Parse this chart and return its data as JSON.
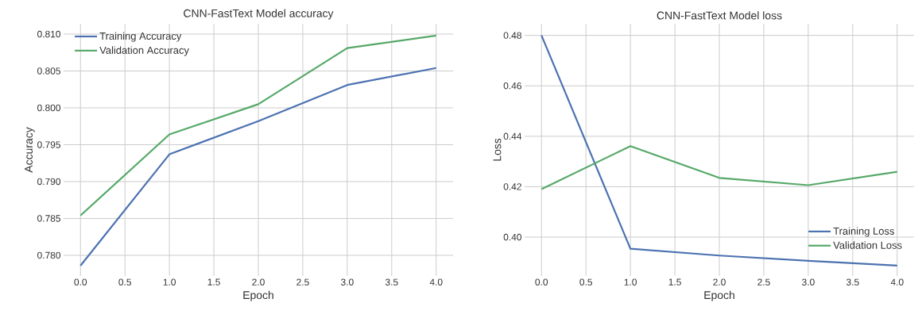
{
  "chart_data": [
    {
      "type": "line",
      "title": "CNN-FastText Model accuracy",
      "xlabel": "Epoch",
      "ylabel": "Accuracy",
      "x": [
        0,
        1,
        2,
        3,
        4
      ],
      "series": [
        {
          "name": "Training Accuracy",
          "color": "#4c72b0",
          "values": [
            0.7786,
            0.7937,
            0.7982,
            0.8031,
            0.8054
          ]
        },
        {
          "name": "Validation Accuracy",
          "color": "#55a868",
          "values": [
            0.7854,
            0.7964,
            0.8005,
            0.8081,
            0.8098
          ]
        }
      ],
      "xlim": [
        -0.19,
        4.19
      ],
      "ylim": [
        0.7772,
        0.8114
      ],
      "xticks": [
        {
          "value": 0,
          "label": "0.0"
        },
        {
          "value": 0.5,
          "label": "0.5"
        },
        {
          "value": 1,
          "label": "1.0"
        },
        {
          "value": 1.5,
          "label": "1.5"
        },
        {
          "value": 2,
          "label": "2.0"
        },
        {
          "value": 2.5,
          "label": "2.5"
        },
        {
          "value": 3,
          "label": "3.0"
        },
        {
          "value": 3.5,
          "label": "3.5"
        },
        {
          "value": 4,
          "label": "4.0"
        }
      ],
      "yticks": [
        {
          "value": 0.78,
          "label": "0.780"
        },
        {
          "value": 0.785,
          "label": "0.785"
        },
        {
          "value": 0.79,
          "label": "0.790"
        },
        {
          "value": 0.795,
          "label": "0.795"
        },
        {
          "value": 0.8,
          "label": "0.800"
        },
        {
          "value": 0.805,
          "label": "0.805"
        },
        {
          "value": 0.81,
          "label": "0.810"
        }
      ],
      "grid": true,
      "legend": "top left"
    },
    {
      "type": "line",
      "title": "CNN-FastText Model loss",
      "xlabel": "Epoch",
      "ylabel": "Loss",
      "x": [
        0,
        1,
        2,
        3,
        4
      ],
      "series": [
        {
          "name": "Training Loss",
          "color": "#4c72b0",
          "values": [
            0.48,
            0.3954,
            0.3927,
            0.3906,
            0.3887
          ]
        },
        {
          "name": "Validation Loss",
          "color": "#55a868",
          "values": [
            0.419,
            0.4361,
            0.4235,
            0.4206,
            0.4259
          ]
        }
      ],
      "xlim": [
        -0.19,
        4.19
      ],
      "ylim": [
        0.3846,
        0.4846
      ],
      "xticks": [
        {
          "value": 0,
          "label": "0.0"
        },
        {
          "value": 0.5,
          "label": "0.5"
        },
        {
          "value": 1,
          "label": "1.0"
        },
        {
          "value": 1.5,
          "label": "1.5"
        },
        {
          "value": 2,
          "label": "2.0"
        },
        {
          "value": 2.5,
          "label": "2.5"
        },
        {
          "value": 3,
          "label": "3.0"
        },
        {
          "value": 3.5,
          "label": "3.5"
        },
        {
          "value": 4,
          "label": "4.0"
        }
      ],
      "yticks": [
        {
          "value": 0.4,
          "label": "0.40"
        },
        {
          "value": 0.42,
          "label": "0.42"
        },
        {
          "value": 0.44,
          "label": "0.44"
        },
        {
          "value": 0.46,
          "label": "0.46"
        },
        {
          "value": 0.48,
          "label": "0.48"
        }
      ],
      "grid": true,
      "legend": "bottom right"
    }
  ]
}
